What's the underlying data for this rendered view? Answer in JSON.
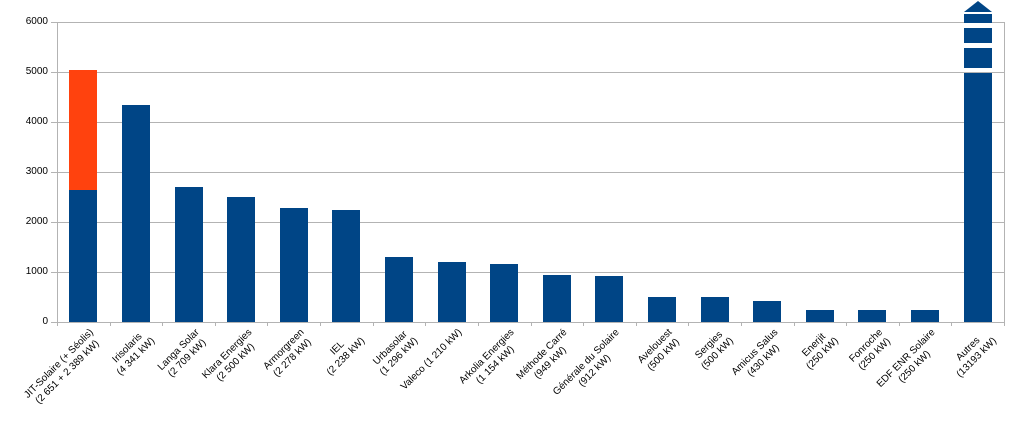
{
  "chart_data": {
    "type": "bar",
    "title": "",
    "xlabel": "",
    "ylabel": "",
    "ylim": [
      0,
      6000
    ],
    "yticks": [
      0,
      1000,
      2000,
      3000,
      4000,
      5000,
      6000
    ],
    "grid": true,
    "legend": "none",
    "stacked": true,
    "unit": "kW",
    "categories": [
      {
        "lines": [
          "JIT-Solaire (+ Séolis)",
          "(2 651 + 2 389 kW)"
        ]
      },
      {
        "lines": [
          "Irisolaris",
          "(4 341 kW)"
        ]
      },
      {
        "lines": [
          "Langa Solar",
          "(2 709 kW)"
        ]
      },
      {
        "lines": [
          "Klara Energies",
          "(2 500 kW)"
        ]
      },
      {
        "lines": [
          "Armorgreen",
          "(2 278 kW)"
        ]
      },
      {
        "lines": [
          "IEL",
          "(2 238 kW)"
        ]
      },
      {
        "lines": [
          "Urbasolar",
          "(1 296 kW)"
        ]
      },
      {
        "lines": [
          "Valeco (1 210 kW)"
        ]
      },
      {
        "lines": [
          "Arkolia Energies",
          "(1 154 kW)"
        ]
      },
      {
        "lines": [
          "Méthode Carré",
          "(949 kW)"
        ]
      },
      {
        "lines": [
          "Générale du Solaire",
          "(912 kW)"
        ]
      },
      {
        "lines": [
          "Avelouest",
          "(500 kW)"
        ]
      },
      {
        "lines": [
          "Sergies",
          "(500 kW)"
        ]
      },
      {
        "lines": [
          "Amicus Salus",
          "(430 kW)"
        ]
      },
      {
        "lines": [
          "Enerjit",
          "(250 kW)"
        ]
      },
      {
        "lines": [
          "Fonroche",
          "(250 kW)"
        ]
      },
      {
        "lines": [
          "EDF ENR Solaire",
          "(250 kW)"
        ]
      },
      {
        "lines": [
          "Autres",
          "(13193 kW)"
        ]
      }
    ],
    "series": [
      {
        "color": "#004586",
        "values": [
          2651,
          4341,
          2709,
          2500,
          2278,
          2238,
          1296,
          1210,
          1154,
          949,
          912,
          500,
          500,
          430,
          250,
          250,
          250,
          13193
        ]
      },
      {
        "color": "#ff420e",
        "values": [
          2389,
          0,
          0,
          0,
          0,
          0,
          0,
          0,
          0,
          0,
          0,
          0,
          0,
          0,
          0,
          0,
          0,
          0
        ]
      }
    ],
    "overflow": {
      "category_index": 17,
      "value": 13193,
      "style": "broken-bar-with-up-arrow"
    },
    "colors": {
      "bar_primary": "#004586",
      "bar_secondary": "#ff420e",
      "gridline": "#b3b3b3",
      "axis": "#b3b3b3",
      "text": "#000000",
      "background": "#ffffff"
    }
  }
}
